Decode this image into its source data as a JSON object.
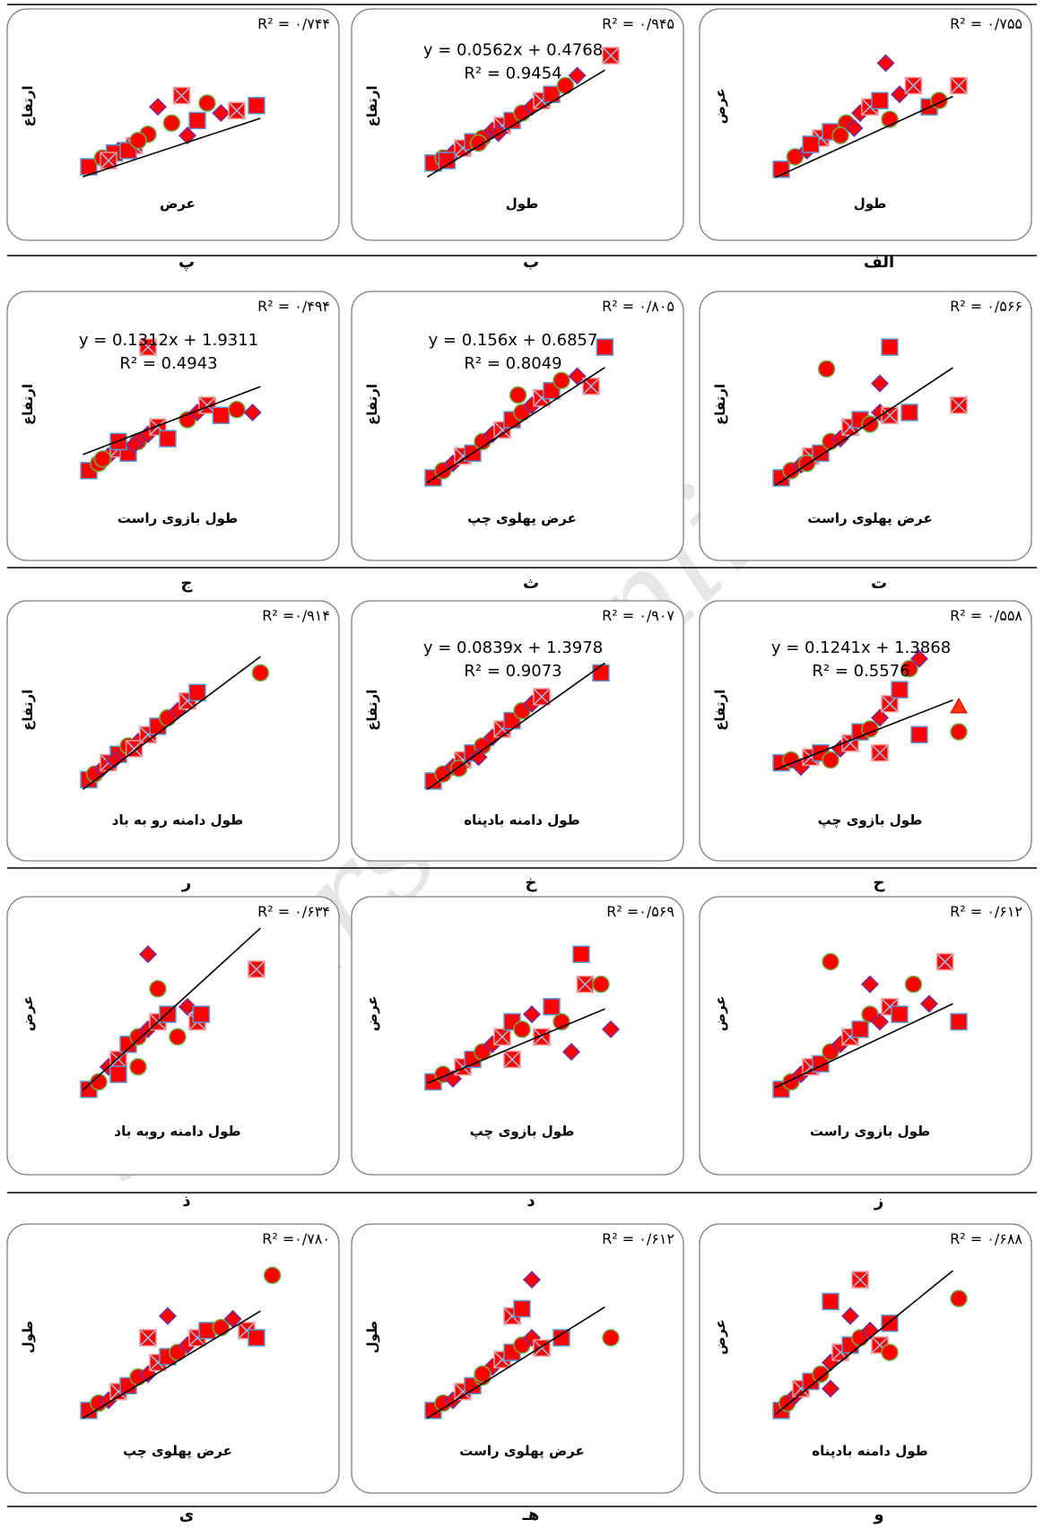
{
  "figure": {
    "background": "#ffffff",
    "marker_color": "#ff0000",
    "marker_edge": "#5b9bd5",
    "outlier_color": "#ff3300",
    "watermark": "shahrsazionline"
  },
  "chart_data": [
    {
      "id": "pe",
      "type": "scatter",
      "caption": "پ",
      "xlabel": "عرض",
      "ylabel": "ارتفاع",
      "r2_text": "R² = ۰/۷۴۴",
      "equation": "",
      "equation_r2": "",
      "slope": 0.52,
      "intercept": -0.02,
      "points": [
        [
          0.05,
          0.07
        ],
        [
          0.12,
          0.14
        ],
        [
          0.2,
          0.2
        ],
        [
          0.28,
          0.24
        ],
        [
          0.18,
          0.18
        ],
        [
          0.35,
          0.33
        ],
        [
          0.4,
          0.55
        ],
        [
          0.52,
          0.64
        ],
        [
          0.6,
          0.44
        ],
        [
          0.65,
          0.58
        ],
        [
          0.72,
          0.5
        ],
        [
          0.8,
          0.52
        ],
        [
          0.9,
          0.56
        ],
        [
          0.47,
          0.42
        ],
        [
          0.55,
          0.32
        ],
        [
          0.15,
          0.12
        ],
        [
          0.25,
          0.2
        ],
        [
          0.3,
          0.28
        ]
      ]
    },
    {
      "id": "be",
      "type": "scatter",
      "caption": "ب",
      "xlabel": "طول",
      "ylabel": "ارتفاع",
      "r2_text": "R² = ۰/۹۴۵",
      "equation": "y = 0.0562x + 0.4768",
      "equation_r2": "R² = 0.9454",
      "slope": 0.95,
      "intercept": -0.03,
      "points": [
        [
          0.05,
          0.1
        ],
        [
          0.1,
          0.14
        ],
        [
          0.15,
          0.18
        ],
        [
          0.2,
          0.22
        ],
        [
          0.25,
          0.27
        ],
        [
          0.3,
          0.3
        ],
        [
          0.35,
          0.36
        ],
        [
          0.4,
          0.4
        ],
        [
          0.45,
          0.44
        ],
        [
          0.5,
          0.5
        ],
        [
          0.55,
          0.55
        ],
        [
          0.6,
          0.6
        ],
        [
          0.65,
          0.65
        ],
        [
          0.72,
          0.72
        ],
        [
          0.78,
          0.8
        ],
        [
          0.95,
          0.96
        ],
        [
          0.12,
          0.12
        ],
        [
          0.28,
          0.26
        ],
        [
          0.38,
          0.34
        ]
      ]
    },
    {
      "id": "alef",
      "type": "scatter",
      "caption": "الف",
      "xlabel": "طول",
      "ylabel": "عرض",
      "r2_text": "R² = ۰/۷۵۵",
      "equation": "",
      "equation_r2": "",
      "slope": 0.72,
      "intercept": -0.03,
      "points": [
        [
          0.05,
          0.05
        ],
        [
          0.12,
          0.15
        ],
        [
          0.18,
          0.2
        ],
        [
          0.25,
          0.3
        ],
        [
          0.3,
          0.35
        ],
        [
          0.38,
          0.42
        ],
        [
          0.45,
          0.5
        ],
        [
          0.5,
          0.55
        ],
        [
          0.55,
          0.6
        ],
        [
          0.6,
          0.45
        ],
        [
          0.65,
          0.65
        ],
        [
          0.72,
          0.72
        ],
        [
          0.8,
          0.55
        ],
        [
          0.85,
          0.6
        ],
        [
          0.58,
          0.9
        ],
        [
          0.95,
          0.72
        ],
        [
          0.2,
          0.25
        ],
        [
          0.35,
          0.32
        ],
        [
          0.42,
          0.38
        ]
      ]
    },
    {
      "id": "je",
      "type": "scatter",
      "caption": "ج",
      "xlabel": "طول بازوی راست",
      "ylabel": "ارتفاع",
      "r2_text": "R² = ۰/۴۹۴",
      "equation": "y = 0.1312x + 1.9311",
      "equation_r2": "R² = 0.4943",
      "slope": 0.52,
      "intercept": 0.2,
      "points": [
        [
          0.05,
          0.1
        ],
        [
          0.1,
          0.15
        ],
        [
          0.15,
          0.2
        ],
        [
          0.2,
          0.25
        ],
        [
          0.25,
          0.22
        ],
        [
          0.3,
          0.3
        ],
        [
          0.35,
          0.35
        ],
        [
          0.4,
          0.4
        ],
        [
          0.45,
          0.32
        ],
        [
          0.55,
          0.45
        ],
        [
          0.6,
          0.5
        ],
        [
          0.65,
          0.55
        ],
        [
          0.72,
          0.48
        ],
        [
          0.8,
          0.52
        ],
        [
          0.88,
          0.5
        ],
        [
          0.35,
          0.95
        ],
        [
          0.2,
          0.3
        ],
        [
          0.12,
          0.18
        ],
        [
          0.28,
          0.28
        ]
      ]
    },
    {
      "id": "the",
      "type": "scatter",
      "caption": "ث",
      "xlabel": "عرض پهلوی چپ",
      "ylabel": "ارتفاع",
      "r2_text": "R² = ۰/۸۰۵",
      "equation": "y = 0.156x + 0.6857",
      "equation_r2": "R² = 0.8049",
      "slope": 0.88,
      "intercept": 0.0,
      "points": [
        [
          0.05,
          0.05
        ],
        [
          0.1,
          0.1
        ],
        [
          0.15,
          0.15
        ],
        [
          0.2,
          0.2
        ],
        [
          0.25,
          0.22
        ],
        [
          0.3,
          0.3
        ],
        [
          0.35,
          0.35
        ],
        [
          0.4,
          0.38
        ],
        [
          0.45,
          0.45
        ],
        [
          0.5,
          0.5
        ],
        [
          0.55,
          0.55
        ],
        [
          0.6,
          0.6
        ],
        [
          0.65,
          0.65
        ],
        [
          0.7,
          0.72
        ],
        [
          0.78,
          0.75
        ],
        [
          0.85,
          0.68
        ],
        [
          0.92,
          0.95
        ],
        [
          0.48,
          0.62
        ]
      ]
    },
    {
      "id": "te",
      "type": "scatter",
      "caption": "ت",
      "xlabel": "عرض پهلوی راست",
      "ylabel": "ارتفاع",
      "r2_text": "R² = ۰/۵۶۶",
      "equation": "",
      "equation_r2": "",
      "slope": 0.9,
      "intercept": -0.02,
      "points": [
        [
          0.05,
          0.05
        ],
        [
          0.1,
          0.1
        ],
        [
          0.15,
          0.14
        ],
        [
          0.2,
          0.2
        ],
        [
          0.25,
          0.22
        ],
        [
          0.3,
          0.3
        ],
        [
          0.35,
          0.32
        ],
        [
          0.4,
          0.4
        ],
        [
          0.45,
          0.45
        ],
        [
          0.5,
          0.42
        ],
        [
          0.55,
          0.5
        ],
        [
          0.6,
          0.48
        ],
        [
          0.7,
          0.5
        ],
        [
          0.28,
          0.8
        ],
        [
          0.55,
          0.7
        ],
        [
          0.95,
          0.55
        ],
        [
          0.6,
          0.95
        ],
        [
          0.18,
          0.15
        ]
      ]
    },
    {
      "id": "re",
      "type": "scatter",
      "caption": "ر",
      "xlabel": "طول دامنه رو به باد",
      "ylabel": "ارتفاع",
      "r2_text": "R² =۰/۹۱۴",
      "equation": "",
      "equation_r2": "",
      "slope": 1.05,
      "intercept": -0.03,
      "points": [
        [
          0.05,
          0.06
        ],
        [
          0.08,
          0.1
        ],
        [
          0.12,
          0.14
        ],
        [
          0.15,
          0.18
        ],
        [
          0.2,
          0.24
        ],
        [
          0.25,
          0.3
        ],
        [
          0.3,
          0.33
        ],
        [
          0.35,
          0.38
        ],
        [
          0.4,
          0.44
        ],
        [
          0.45,
          0.5
        ],
        [
          0.5,
          0.55
        ],
        [
          0.55,
          0.62
        ],
        [
          0.6,
          0.68
        ],
        [
          0.92,
          0.82
        ],
        [
          0.18,
          0.2
        ],
        [
          0.28,
          0.28
        ]
      ]
    },
    {
      "id": "khe",
      "type": "scatter",
      "caption": "خ",
      "xlabel": "طول دامنه بادپناه",
      "ylabel": "ارتفاع",
      "r2_text": "R² = ۰/۹۰۷",
      "equation": "y = 0.0839x + 1.3978",
      "equation_r2": "R² = 0.9073",
      "slope": 1.0,
      "intercept": -0.03,
      "points": [
        [
          0.05,
          0.05
        ],
        [
          0.1,
          0.1
        ],
        [
          0.15,
          0.15
        ],
        [
          0.2,
          0.2
        ],
        [
          0.25,
          0.25
        ],
        [
          0.3,
          0.3
        ],
        [
          0.35,
          0.36
        ],
        [
          0.4,
          0.42
        ],
        [
          0.45,
          0.48
        ],
        [
          0.5,
          0.55
        ],
        [
          0.55,
          0.6
        ],
        [
          0.6,
          0.65
        ],
        [
          0.9,
          0.82
        ],
        [
          0.18,
          0.14
        ],
        [
          0.28,
          0.22
        ]
      ]
    },
    {
      "id": "he",
      "type": "scatter",
      "caption": "ح",
      "xlabel": "طول بازوی چپ",
      "ylabel": "ارتفاع",
      "r2_text": "R² = ۰/۵۵۸",
      "equation": "y = 0.1241x + 1.3868",
      "equation_r2": "R² = 0.5576",
      "slope": 0.55,
      "intercept": 0.12,
      "points": [
        [
          0.05,
          0.18
        ],
        [
          0.1,
          0.2
        ],
        [
          0.15,
          0.15
        ],
        [
          0.2,
          0.22
        ],
        [
          0.25,
          0.25
        ],
        [
          0.3,
          0.2
        ],
        [
          0.35,
          0.28
        ],
        [
          0.4,
          0.32
        ],
        [
          0.45,
          0.4
        ],
        [
          0.5,
          0.42
        ],
        [
          0.55,
          0.5
        ],
        [
          0.6,
          0.6
        ],
        [
          0.65,
          0.7
        ],
        [
          0.7,
          0.85
        ],
        [
          0.75,
          0.92
        ],
        [
          0.55,
          0.25
        ],
        [
          0.75,
          0.38
        ],
        [
          0.95,
          0.4
        ],
        [
          0.95,
          0.58
        ]
      ]
    },
    {
      "id": "zal",
      "type": "scatter",
      "caption": "ذ",
      "xlabel": "طول دامنه روبه باد",
      "ylabel": "عرض",
      "r2_text": "R² = ۰/۶۳۴",
      "equation": "",
      "equation_r2": "",
      "slope": 1.2,
      "intercept": 0.02,
      "points": [
        [
          0.05,
          0.05
        ],
        [
          0.1,
          0.1
        ],
        [
          0.15,
          0.2
        ],
        [
          0.2,
          0.25
        ],
        [
          0.25,
          0.35
        ],
        [
          0.3,
          0.4
        ],
        [
          0.35,
          0.45
        ],
        [
          0.4,
          0.5
        ],
        [
          0.45,
          0.55
        ],
        [
          0.5,
          0.4
        ],
        [
          0.55,
          0.6
        ],
        [
          0.6,
          0.5
        ],
        [
          0.62,
          0.55
        ],
        [
          0.4,
          0.72
        ],
        [
          0.35,
          0.95
        ],
        [
          0.9,
          0.85
        ],
        [
          0.2,
          0.15
        ],
        [
          0.3,
          0.2
        ]
      ]
    },
    {
      "id": "dal",
      "type": "scatter",
      "caption": "د",
      "xlabel": "طول بازوی چپ",
      "ylabel": "عرض",
      "r2_text": "R² =۰/۵۶۹",
      "equation": "",
      "equation_r2": "",
      "slope": 0.55,
      "intercept": 0.08,
      "points": [
        [
          0.05,
          0.1
        ],
        [
          0.1,
          0.15
        ],
        [
          0.15,
          0.12
        ],
        [
          0.2,
          0.2
        ],
        [
          0.25,
          0.25
        ],
        [
          0.3,
          0.3
        ],
        [
          0.35,
          0.35
        ],
        [
          0.4,
          0.4
        ],
        [
          0.45,
          0.5
        ],
        [
          0.5,
          0.45
        ],
        [
          0.55,
          0.55
        ],
        [
          0.6,
          0.4
        ],
        [
          0.65,
          0.6
        ],
        [
          0.7,
          0.5
        ],
        [
          0.75,
          0.3
        ],
        [
          0.82,
          0.75
        ],
        [
          0.8,
          0.95
        ],
        [
          0.9,
          0.75
        ],
        [
          0.95,
          0.45
        ],
        [
          0.45,
          0.25
        ]
      ]
    },
    {
      "id": "ze",
      "type": "scatter",
      "caption": "ز",
      "xlabel": "طول بازوی راست",
      "ylabel": "عرض",
      "r2_text": "R² = ۰/۶۱۲",
      "equation": "",
      "equation_r2": "",
      "slope": 0.62,
      "intercept": 0.05,
      "points": [
        [
          0.05,
          0.05
        ],
        [
          0.1,
          0.1
        ],
        [
          0.15,
          0.15
        ],
        [
          0.2,
          0.2
        ],
        [
          0.25,
          0.22
        ],
        [
          0.3,
          0.3
        ],
        [
          0.35,
          0.35
        ],
        [
          0.4,
          0.4
        ],
        [
          0.45,
          0.45
        ],
        [
          0.5,
          0.55
        ],
        [
          0.55,
          0.5
        ],
        [
          0.6,
          0.6
        ],
        [
          0.65,
          0.55
        ],
        [
          0.72,
          0.75
        ],
        [
          0.8,
          0.62
        ],
        [
          0.88,
          0.9
        ],
        [
          0.95,
          0.5
        ],
        [
          0.3,
          0.9
        ],
        [
          0.5,
          0.75
        ]
      ]
    },
    {
      "id": "ye",
      "type": "scatter",
      "caption": "ی",
      "xlabel": "عرض پهلوی چپ",
      "ylabel": "طول",
      "r2_text": "R² =۰/۷۸۰",
      "equation": "",
      "equation_r2": "",
      "slope": 0.82,
      "intercept": -0.02,
      "points": [
        [
          0.05,
          0.05
        ],
        [
          0.1,
          0.1
        ],
        [
          0.15,
          0.12
        ],
        [
          0.2,
          0.18
        ],
        [
          0.25,
          0.22
        ],
        [
          0.3,
          0.28
        ],
        [
          0.35,
          0.3
        ],
        [
          0.4,
          0.38
        ],
        [
          0.45,
          0.42
        ],
        [
          0.5,
          0.45
        ],
        [
          0.55,
          0.5
        ],
        [
          0.6,
          0.55
        ],
        [
          0.65,
          0.6
        ],
        [
          0.72,
          0.62
        ],
        [
          0.78,
          0.68
        ],
        [
          0.85,
          0.6
        ],
        [
          0.9,
          0.55
        ],
        [
          0.98,
          0.98
        ],
        [
          0.45,
          0.7
        ],
        [
          0.35,
          0.55
        ]
      ]
    },
    {
      "id": "he2",
      "type": "scatter",
      "caption": "هـ",
      "xlabel": "عرض پهلوی راست",
      "ylabel": "طول",
      "r2_text": "R² = ۰/۶۱۲",
      "equation": "",
      "equation_r2": "",
      "slope": 0.85,
      "intercept": -0.02,
      "points": [
        [
          0.05,
          0.05
        ],
        [
          0.1,
          0.1
        ],
        [
          0.15,
          0.12
        ],
        [
          0.2,
          0.18
        ],
        [
          0.25,
          0.22
        ],
        [
          0.3,
          0.28
        ],
        [
          0.35,
          0.35
        ],
        [
          0.4,
          0.4
        ],
        [
          0.45,
          0.45
        ],
        [
          0.5,
          0.5
        ],
        [
          0.55,
          0.55
        ],
        [
          0.6,
          0.48
        ],
        [
          0.7,
          0.55
        ],
        [
          0.95,
          0.55
        ],
        [
          0.55,
          0.95
        ],
        [
          0.45,
          0.7
        ],
        [
          0.5,
          0.75
        ],
        [
          0.3,
          0.3
        ]
      ]
    },
    {
      "id": "vav",
      "type": "scatter",
      "caption": "و",
      "xlabel": "طول دامنه بادپناه",
      "ylabel": "عرض",
      "r2_text": "R² = ۰/۶۸۸",
      "equation": "",
      "equation_r2": "",
      "slope": 1.1,
      "intercept": 0.0,
      "points": [
        [
          0.05,
          0.05
        ],
        [
          0.08,
          0.1
        ],
        [
          0.12,
          0.15
        ],
        [
          0.15,
          0.2
        ],
        [
          0.2,
          0.25
        ],
        [
          0.25,
          0.3
        ],
        [
          0.3,
          0.38
        ],
        [
          0.35,
          0.45
        ],
        [
          0.4,
          0.5
        ],
        [
          0.45,
          0.55
        ],
        [
          0.5,
          0.6
        ],
        [
          0.55,
          0.5
        ],
        [
          0.6,
          0.65
        ],
        [
          0.6,
          0.45
        ],
        [
          0.4,
          0.7
        ],
        [
          0.45,
          0.95
        ],
        [
          0.3,
          0.8
        ],
        [
          0.95,
          0.82
        ],
        [
          0.3,
          0.2
        ]
      ]
    }
  ]
}
